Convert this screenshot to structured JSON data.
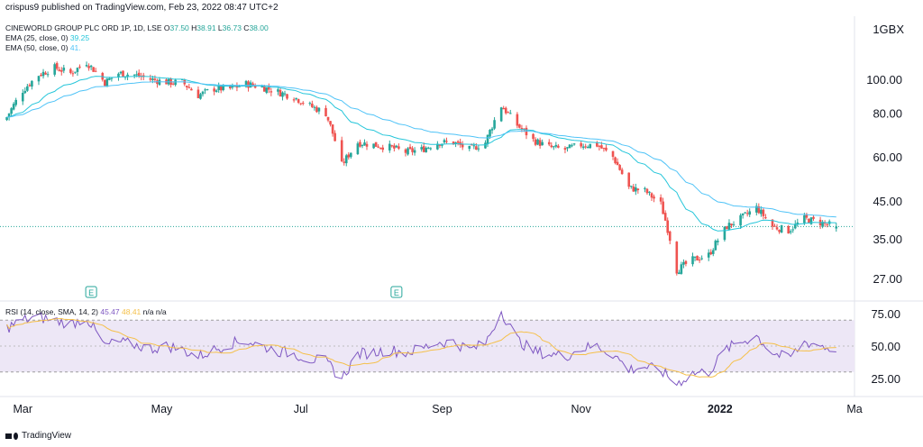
{
  "caption": "crispus9 published on TradingView.com, Feb 23, 2022 08:47 UTC+2",
  "currency_label": "1GBX",
  "footer": {
    "brand": "TradingView",
    "logo_icon": "tradingview-logo-icon"
  },
  "legend": {
    "symbol": "CINEWORLD GROUP PLC ORD 1P, 1D, LSE",
    "o_label": "O",
    "o": "37.50",
    "h_label": "H",
    "h": "38.91",
    "l_label": "L",
    "l": "36.73",
    "c_label": "C",
    "c": "38.00",
    "ema25_label": "EMA (25, close, 0)",
    "ema25_value": "39.25",
    "ema50_label": "EMA (50, close, 0)",
    "ema50_value": "41.",
    "rsi_label": "RSI (14, close, SMA, 14, 2)",
    "rsi_value": "45.47",
    "rsi_sma_value": "48.41",
    "na1": "n/a",
    "na2": "n/a"
  },
  "earnings_markers": [
    {
      "label": "E",
      "month": "Mar"
    },
    {
      "label": "E",
      "month": "Aug"
    }
  ],
  "colors": {
    "up": "#26a69a",
    "down": "#ef5350",
    "ema25": "#26c6da",
    "ema50": "#4fc3f7",
    "rsi": "#7e57c2",
    "rsi_sma": "#f5c04a",
    "rsi_band": "#ede7f6",
    "grid": "#f0f3fa",
    "last_price_line": "#26a69a"
  },
  "chart_data": [
    {
      "type": "candlestick",
      "title": "CINEWORLD GROUP PLC ORD 1P, 1D, LSE",
      "y_scale": "log",
      "ylim": [
        24,
        140
      ],
      "y_ticks": [
        "100.00",
        "80.00",
        "60.00",
        "45.00",
        "35.00",
        "27.00"
      ],
      "x_ticks": [
        "Mar",
        "May",
        "Jul",
        "Sep",
        "Nov",
        "2022",
        "Ma"
      ],
      "last_price": 38.0,
      "close_path": [
        [
          "2021-02-22",
          78
        ],
        [
          "2021-03-01",
          93
        ],
        [
          "2021-03-08",
          103
        ],
        [
          "2021-03-15",
          108
        ],
        [
          "2021-03-22",
          104
        ],
        [
          "2021-03-29",
          112
        ],
        [
          "2021-04-06",
          98
        ],
        [
          "2021-04-12",
          104
        ],
        [
          "2021-04-19",
          103
        ],
        [
          "2021-04-26",
          100
        ],
        [
          "2021-05-04",
          98
        ],
        [
          "2021-05-10",
          98
        ],
        [
          "2021-05-17",
          90
        ],
        [
          "2021-05-24",
          94
        ],
        [
          "2021-05-31",
          94
        ],
        [
          "2021-06-07",
          97
        ],
        [
          "2021-06-14",
          95
        ],
        [
          "2021-06-21",
          92
        ],
        [
          "2021-06-28",
          89
        ],
        [
          "2021-07-05",
          84
        ],
        [
          "2021-07-12",
          80
        ],
        [
          "2021-07-19",
          57
        ],
        [
          "2021-07-26",
          66
        ],
        [
          "2021-08-02",
          65
        ],
        [
          "2021-08-09",
          64
        ],
        [
          "2021-08-16",
          62
        ],
        [
          "2021-08-23",
          63
        ],
        [
          "2021-08-30",
          66
        ],
        [
          "2021-09-06",
          66
        ],
        [
          "2021-09-13",
          63
        ],
        [
          "2021-09-20",
          66
        ],
        [
          "2021-09-27",
          84
        ],
        [
          "2021-10-04",
          74
        ],
        [
          "2021-10-11",
          67
        ],
        [
          "2021-10-18",
          64
        ],
        [
          "2021-10-25",
          63
        ],
        [
          "2021-11-01",
          65
        ],
        [
          "2021-11-08",
          65
        ],
        [
          "2021-11-15",
          60
        ],
        [
          "2021-11-22",
          49
        ],
        [
          "2021-11-29",
          48
        ],
        [
          "2021-12-06",
          44
        ],
        [
          "2021-12-13",
          28.5
        ],
        [
          "2021-12-20",
          30.5
        ],
        [
          "2021-12-27",
          31.5
        ],
        [
          "2022-01-04",
          38
        ],
        [
          "2022-01-10",
          40
        ],
        [
          "2022-01-17",
          43
        ],
        [
          "2022-01-24",
          38
        ],
        [
          "2022-01-31",
          37
        ],
        [
          "2022-02-07",
          40
        ],
        [
          "2022-02-14",
          39
        ],
        [
          "2022-02-21",
          38
        ]
      ],
      "series": [
        {
          "name": "EMA (25, close, 0)",
          "last": 39.25
        },
        {
          "name": "EMA (50, close, 0)",
          "last": 41.0
        }
      ]
    },
    {
      "type": "line",
      "title": "RSI (14, close, SMA, 14, 2)",
      "ylim": [
        15,
        85
      ],
      "y_ticks": [
        "75.00",
        "50.00",
        "25.00"
      ],
      "band": [
        30,
        70
      ],
      "series": [
        {
          "name": "RSI",
          "values": [
            [
              "2021-02-22",
              64
            ],
            [
              "2021-03-01",
              70
            ],
            [
              "2021-03-08",
              72
            ],
            [
              "2021-03-15",
              70
            ],
            [
              "2021-03-22",
              67
            ],
            [
              "2021-03-29",
              72
            ],
            [
              "2021-04-06",
              50
            ],
            [
              "2021-04-12",
              53
            ],
            [
              "2021-04-19",
              51
            ],
            [
              "2021-04-26",
              48
            ],
            [
              "2021-05-04",
              50
            ],
            [
              "2021-05-10",
              47
            ],
            [
              "2021-05-17",
              42
            ],
            [
              "2021-05-24",
              47
            ],
            [
              "2021-05-31",
              52
            ],
            [
              "2021-06-07",
              54
            ],
            [
              "2021-06-14",
              50
            ],
            [
              "2021-06-21",
              46
            ],
            [
              "2021-06-28",
              44
            ],
            [
              "2021-07-05",
              40
            ],
            [
              "2021-07-12",
              38
            ],
            [
              "2021-07-19",
              25
            ],
            [
              "2021-07-26",
              44
            ],
            [
              "2021-08-02",
              45
            ],
            [
              "2021-08-09",
              47
            ],
            [
              "2021-08-16",
              45
            ],
            [
              "2021-08-23",
              48
            ],
            [
              "2021-08-30",
              53
            ],
            [
              "2021-09-06",
              53
            ],
            [
              "2021-09-13",
              47
            ],
            [
              "2021-09-20",
              52
            ],
            [
              "2021-09-27",
              77
            ],
            [
              "2021-10-04",
              55
            ],
            [
              "2021-10-11",
              46
            ],
            [
              "2021-10-18",
              44
            ],
            [
              "2021-10-25",
              42
            ],
            [
              "2021-11-01",
              48
            ],
            [
              "2021-11-08",
              50
            ],
            [
              "2021-11-15",
              44
            ],
            [
              "2021-11-22",
              32
            ],
            [
              "2021-11-29",
              34
            ],
            [
              "2021-12-06",
              31
            ],
            [
              "2021-12-13",
              21
            ],
            [
              "2021-12-20",
              29
            ],
            [
              "2021-12-27",
              30
            ],
            [
              "2022-01-04",
              48
            ],
            [
              "2022-01-10",
              53
            ],
            [
              "2022-01-17",
              58
            ],
            [
              "2022-01-24",
              45
            ],
            [
              "2022-01-31",
              40
            ],
            [
              "2022-02-07",
              53
            ],
            [
              "2022-02-14",
              51
            ],
            [
              "2022-02-21",
              45.47
            ]
          ]
        },
        {
          "name": "RSI-based MA",
          "last": 48.41
        }
      ]
    }
  ]
}
